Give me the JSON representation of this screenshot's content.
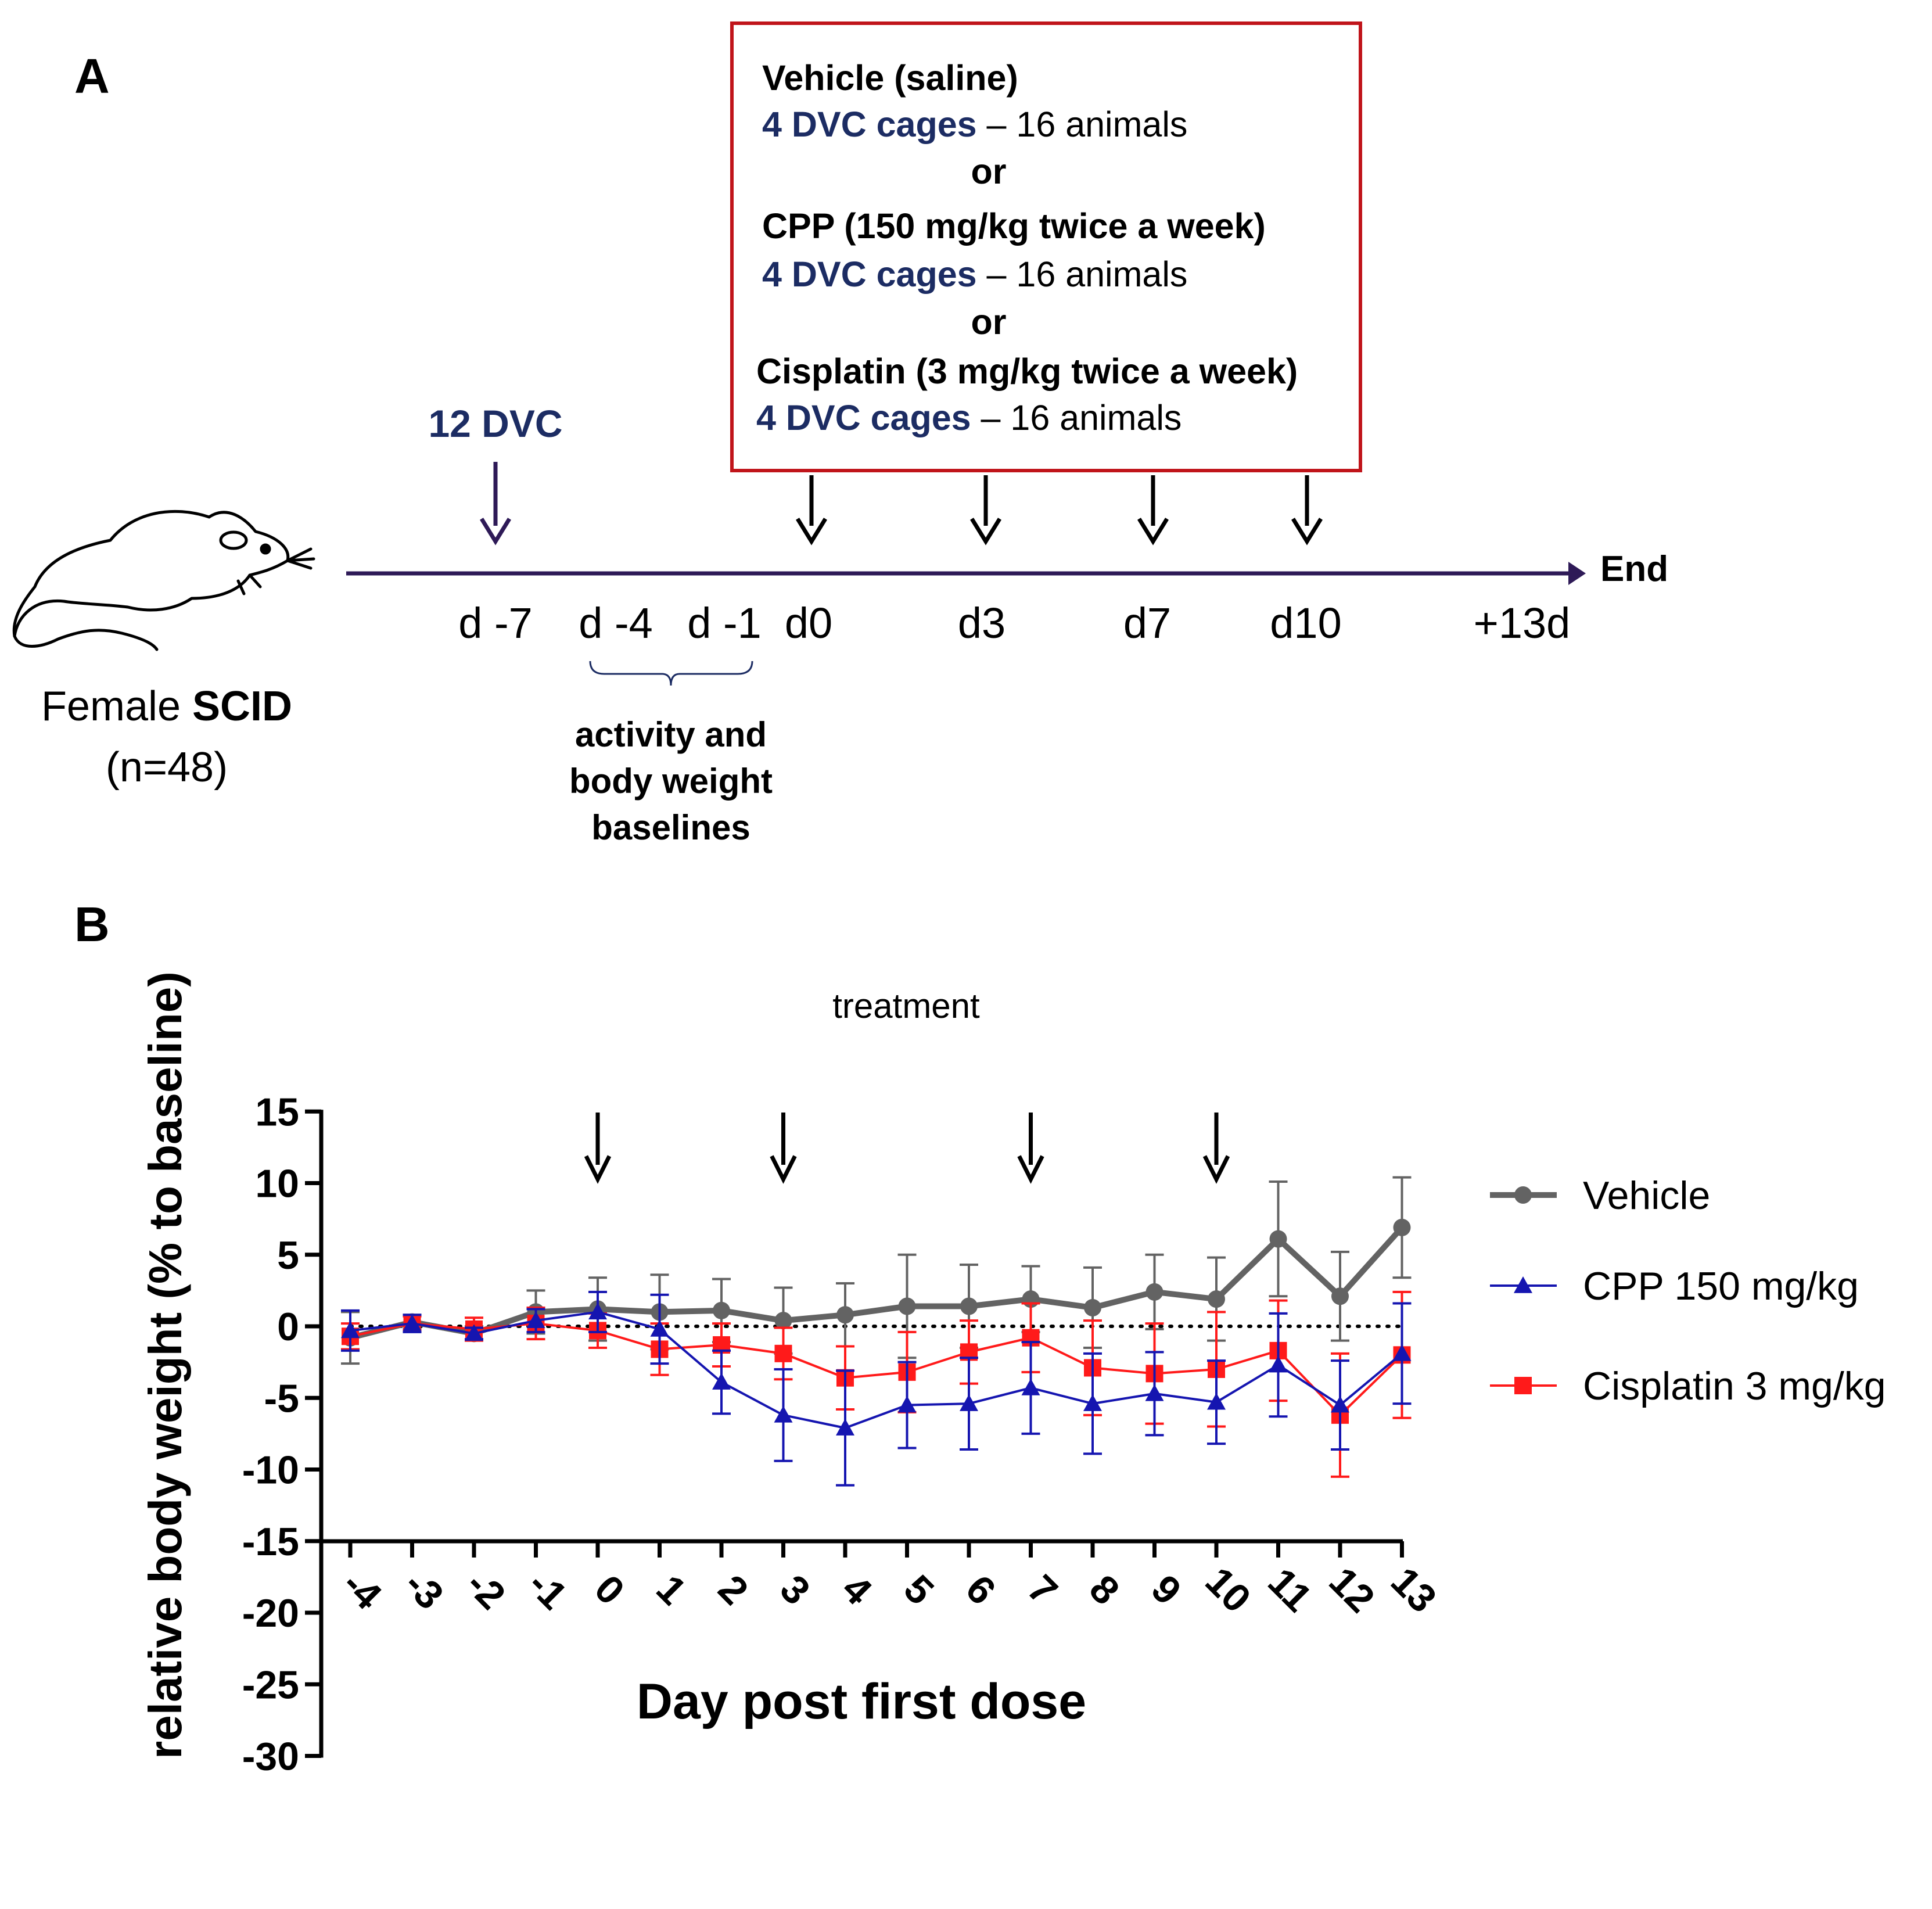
{
  "colors": {
    "vehicle": "#636363",
    "cpp": "#1515b0",
    "cisplatin": "#ff1a1a",
    "navy": "#1c2c63",
    "timeline": "#2e1a57",
    "box_border": "#c0141a",
    "black": "#000000"
  },
  "panel_a": {
    "label": "A",
    "box": {
      "vehicle_title": "Vehicle (saline)",
      "cages_label": "4 DVC cages",
      "cages_suffix": " – 16 animals",
      "or": "or",
      "cpp_title": "CPP (150 mg/kg twice a week)",
      "cisplatin_title": "Cisplatin (3 mg/kg twice a week)"
    },
    "dvc_label": "12 DVC",
    "mouse_icon": "mouse-icon",
    "mouse_caption_prefix": "Female ",
    "mouse_caption_bold": "SCID",
    "mouse_caption_n": "(n=48)",
    "timeline_end": "End",
    "days": [
      "d -7",
      "d -4",
      "d -1",
      "d0",
      "d3",
      "d7",
      "d10",
      "+13d"
    ],
    "baseline_note": [
      "activity and",
      "body weight",
      "baselines"
    ]
  },
  "panel_b": {
    "label": "B",
    "treatment_label": "treatment"
  },
  "chart_data": {
    "type": "line",
    "xlabel": "Day post first dose",
    "ylabel": "relative body weight (% to baseline)",
    "ylim": [
      -30,
      15
    ],
    "yticks": [
      15,
      10,
      5,
      0,
      -5,
      -10,
      -15,
      -20,
      -25,
      -30
    ],
    "x": [
      -4,
      -3,
      -2,
      -1,
      0,
      1,
      2,
      3,
      4,
      5,
      6,
      7,
      8,
      9,
      10,
      11,
      12,
      13
    ],
    "xtick_labels": [
      "-4",
      "-3",
      "-2",
      "-1",
      "0",
      "1",
      "2",
      "3",
      "4",
      "5",
      "6",
      "7",
      "8",
      "9",
      "10",
      "11",
      "12",
      "13"
    ],
    "reference_line": 0,
    "treatment_days": [
      0,
      3,
      7,
      10
    ],
    "legend_position": "right",
    "series": [
      {
        "name": "Vehicle",
        "marker": "circle",
        "values": [
          -0.8,
          0.3,
          -0.5,
          1.0,
          1.2,
          1.0,
          1.1,
          0.4,
          0.8,
          1.4,
          1.4,
          1.9,
          1.3,
          2.4,
          1.9,
          6.1,
          2.1,
          6.9
        ],
        "errors": [
          1.8,
          0.5,
          0.5,
          1.5,
          2.2,
          2.6,
          2.2,
          2.3,
          2.2,
          3.6,
          2.9,
          2.3,
          2.8,
          2.6,
          2.9,
          4.0,
          3.1,
          3.5
        ]
      },
      {
        "name": "CPP 150 mg/kg",
        "marker": "triangle",
        "values": [
          -0.3,
          0.2,
          -0.5,
          0.4,
          1.0,
          -0.2,
          -3.9,
          -6.2,
          -7.1,
          -5.5,
          -5.4,
          -4.3,
          -5.4,
          -4.7,
          -5.3,
          -2.7,
          -5.5,
          -1.9
        ],
        "errors": [
          1.4,
          0.6,
          0.4,
          0.8,
          1.4,
          2.4,
          2.2,
          3.2,
          4.0,
          3.0,
          3.2,
          3.2,
          3.5,
          2.9,
          2.9,
          3.6,
          3.1,
          3.5
        ]
      },
      {
        "name": "Cisplatin 3 mg/kg",
        "marker": "square",
        "values": [
          -0.7,
          0.2,
          -0.2,
          0.2,
          -0.3,
          -1.6,
          -1.3,
          -1.9,
          -3.6,
          -3.2,
          -1.8,
          -0.8,
          -2.9,
          -3.3,
          -3.0,
          -1.7,
          -6.2,
          -2.0
        ],
        "errors": [
          0.9,
          0.5,
          0.8,
          1.1,
          1.2,
          1.8,
          1.5,
          1.8,
          2.2,
          2.8,
          2.2,
          2.4,
          3.3,
          3.5,
          4.0,
          3.5,
          4.3,
          4.4
        ]
      }
    ]
  }
}
